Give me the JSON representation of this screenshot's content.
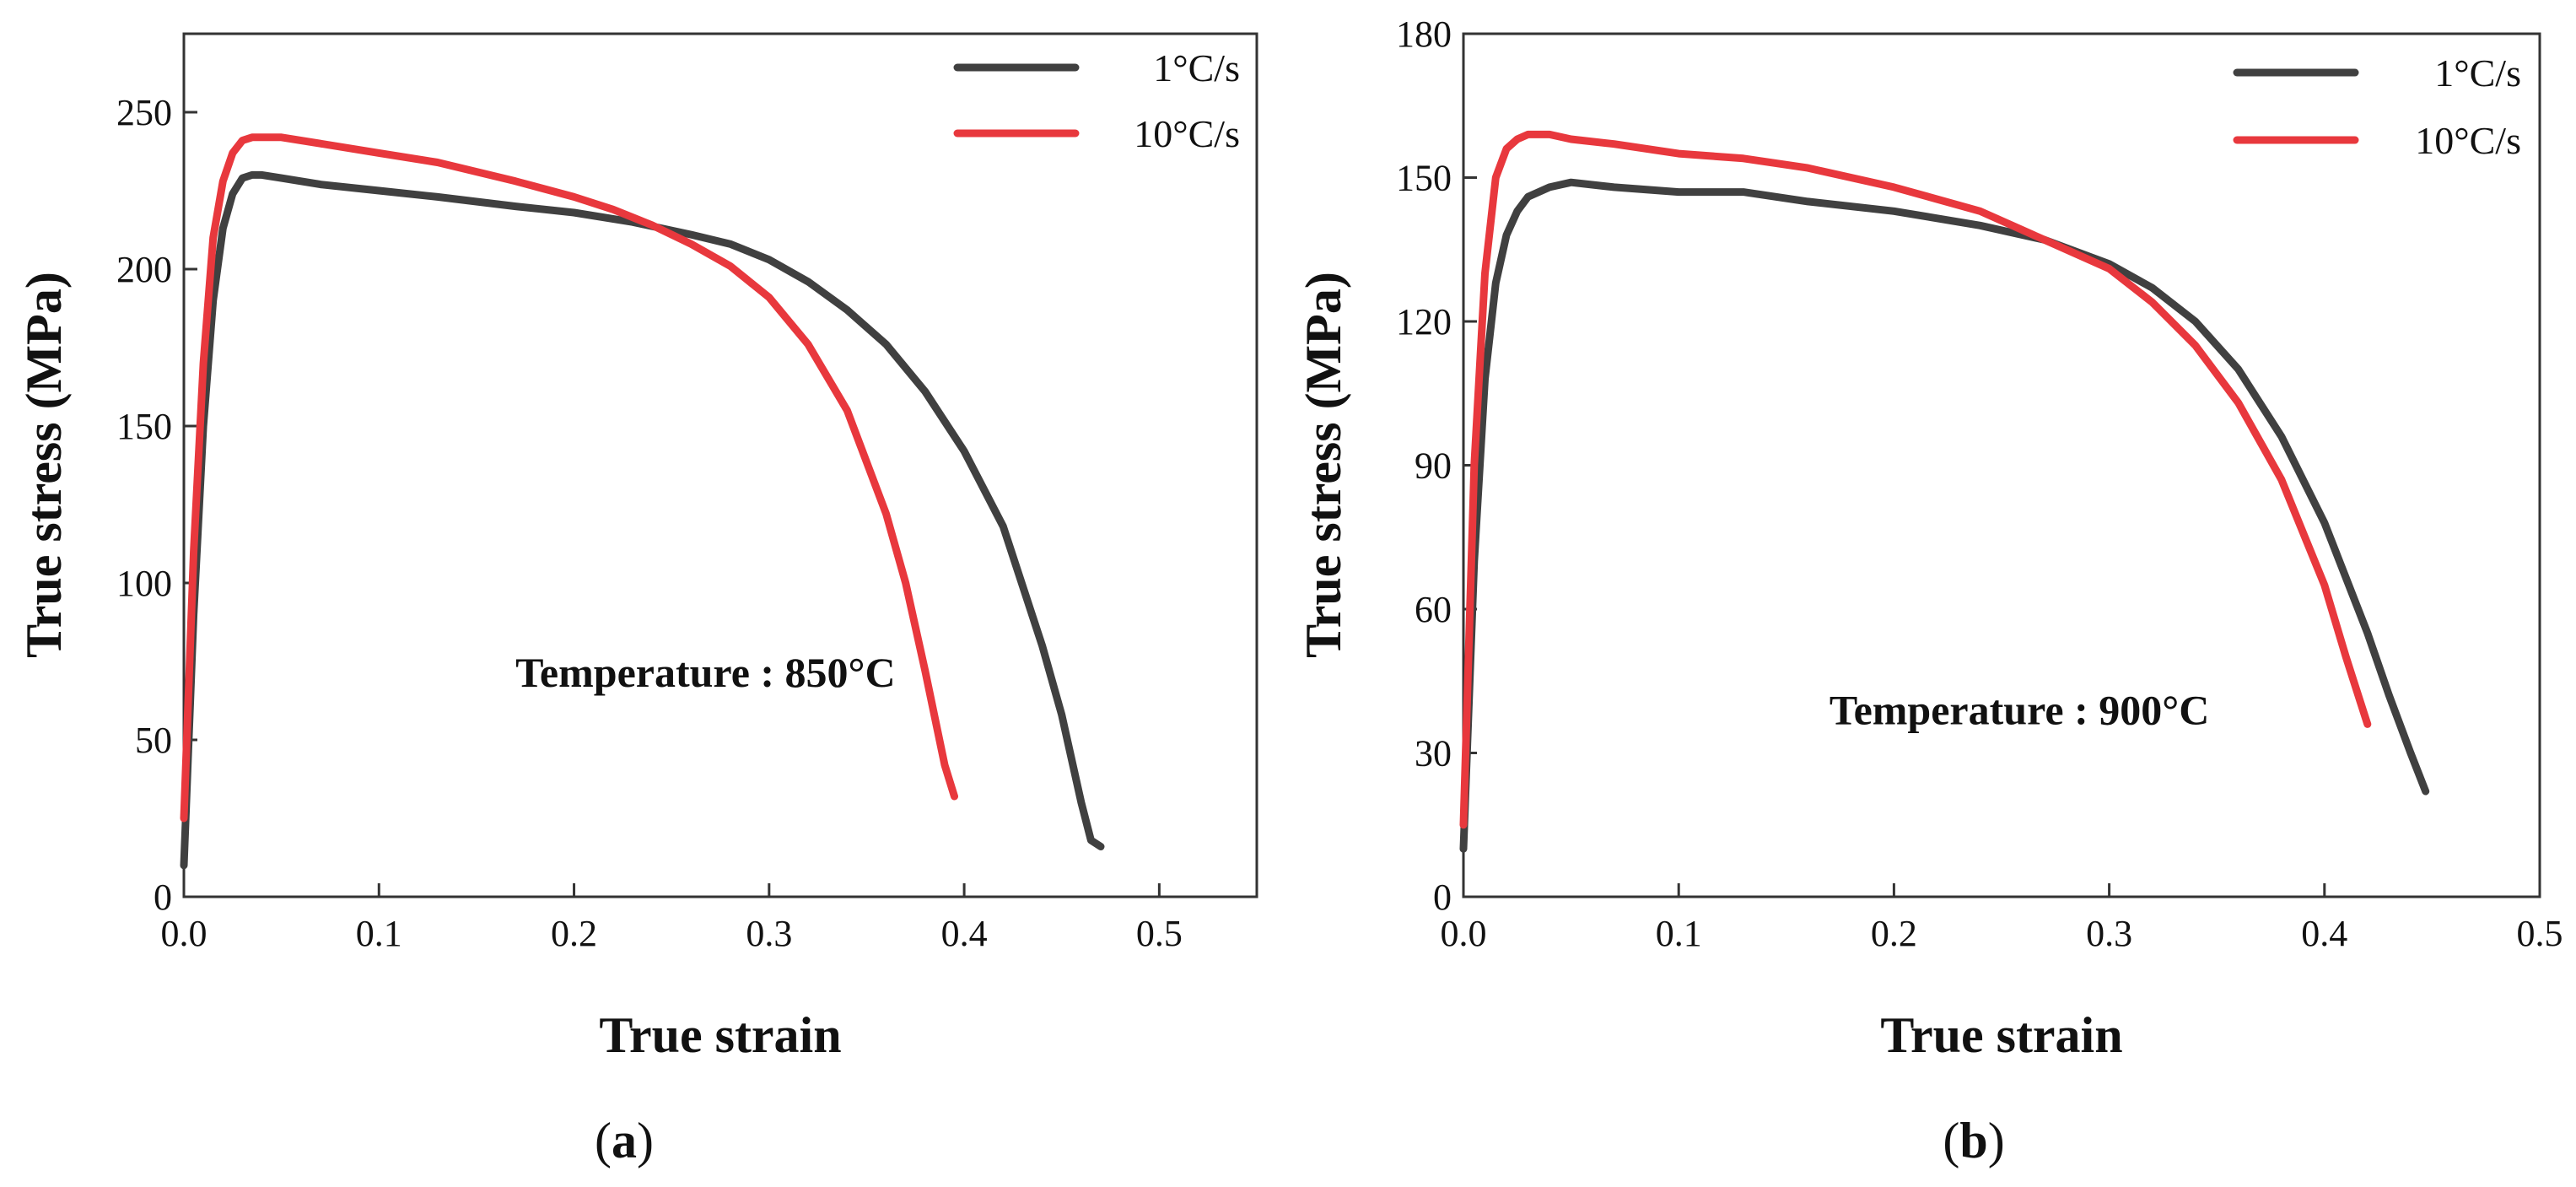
{
  "colors": {
    "dark_series": "#404040",
    "red_series": "#e8383d"
  },
  "chart_data": [
    {
      "id": "a",
      "type": "line",
      "caption": "a",
      "xlabel": "True strain",
      "ylabel": "True stress (MPa)",
      "xlim": [
        0,
        0.55
      ],
      "ylim": [
        0,
        275
      ],
      "xticks": [
        "0.0",
        "0.1",
        "0.2",
        "0.3",
        "0.4",
        "0.5"
      ],
      "xtick_values": [
        0,
        0.1,
        0.2,
        0.3,
        0.4,
        0.5
      ],
      "yticks": [
        "0",
        "50",
        "100",
        "150",
        "200",
        "250"
      ],
      "ytick_values": [
        0,
        50,
        100,
        150,
        200,
        250
      ],
      "annotation": "Temperature : 850°C",
      "annotation_at": [
        0.17,
        67
      ],
      "legend_position": "top-right",
      "series": [
        {
          "name": "1°C/s",
          "color_key": "dark_series",
          "x": [
            0,
            0.005,
            0.01,
            0.015,
            0.02,
            0.025,
            0.03,
            0.035,
            0.04,
            0.05,
            0.07,
            0.1,
            0.13,
            0.17,
            0.2,
            0.23,
            0.26,
            0.28,
            0.3,
            0.32,
            0.34,
            0.36,
            0.38,
            0.4,
            0.42,
            0.44,
            0.45,
            0.46,
            0.465,
            0.47
          ],
          "values": [
            10,
            90,
            150,
            190,
            213,
            224,
            229,
            230,
            230,
            229,
            227,
            225,
            223,
            220,
            218,
            215,
            211,
            208,
            203,
            196,
            187,
            176,
            161,
            142,
            118,
            80,
            58,
            30,
            18,
            16
          ]
        },
        {
          "name": "10°C/s",
          "color_key": "red_series",
          "x": [
            0,
            0.005,
            0.01,
            0.015,
            0.02,
            0.025,
            0.03,
            0.035,
            0.04,
            0.05,
            0.07,
            0.1,
            0.13,
            0.17,
            0.2,
            0.22,
            0.24,
            0.26,
            0.28,
            0.3,
            0.32,
            0.34,
            0.36,
            0.37,
            0.38,
            0.39,
            0.395
          ],
          "values": [
            25,
            110,
            170,
            210,
            228,
            237,
            241,
            242,
            242,
            242,
            240,
            237,
            234,
            228,
            223,
            219,
            214,
            208,
            201,
            191,
            176,
            155,
            122,
            100,
            72,
            42,
            32
          ]
        }
      ]
    },
    {
      "id": "b",
      "type": "line",
      "caption": "b",
      "xlabel": "True strain",
      "ylabel": "True stress (MPa)",
      "xlim": [
        0,
        0.5
      ],
      "ylim": [
        0,
        180
      ],
      "xticks": [
        "0.0",
        "0.1",
        "0.2",
        "0.3",
        "0.4",
        "0.5"
      ],
      "xtick_values": [
        0,
        0.1,
        0.2,
        0.3,
        0.4,
        0.5
      ],
      "yticks": [
        "0",
        "30",
        "60",
        "90",
        "120",
        "150",
        "180"
      ],
      "ytick_values": [
        0,
        30,
        60,
        90,
        120,
        150,
        180
      ],
      "annotation": "Temperature : 900°C",
      "annotation_at": [
        0.17,
        36
      ],
      "legend_position": "top-right",
      "series": [
        {
          "name": "1°C/s",
          "color_key": "dark_series",
          "x": [
            0,
            0.005,
            0.01,
            0.015,
            0.02,
            0.025,
            0.03,
            0.04,
            0.05,
            0.07,
            0.1,
            0.13,
            0.16,
            0.2,
            0.24,
            0.27,
            0.3,
            0.32,
            0.34,
            0.36,
            0.38,
            0.4,
            0.42,
            0.43,
            0.44,
            0.447
          ],
          "values": [
            10,
            70,
            108,
            128,
            138,
            143,
            146,
            148,
            149,
            148,
            147,
            147,
            145,
            143,
            140,
            137,
            132,
            127,
            120,
            110,
            96,
            78,
            55,
            42,
            30,
            22
          ]
        },
        {
          "name": "10°C/s",
          "color_key": "red_series",
          "x": [
            0,
            0.005,
            0.01,
            0.015,
            0.02,
            0.025,
            0.03,
            0.035,
            0.04,
            0.05,
            0.07,
            0.1,
            0.13,
            0.16,
            0.2,
            0.24,
            0.27,
            0.3,
            0.32,
            0.34,
            0.36,
            0.38,
            0.39,
            0.4,
            0.41,
            0.42
          ],
          "values": [
            15,
            90,
            130,
            150,
            156,
            158,
            159,
            159,
            159,
            158,
            157,
            155,
            154,
            152,
            148,
            143,
            137,
            131,
            124,
            115,
            103,
            87,
            76,
            65,
            50,
            36
          ]
        }
      ]
    }
  ]
}
